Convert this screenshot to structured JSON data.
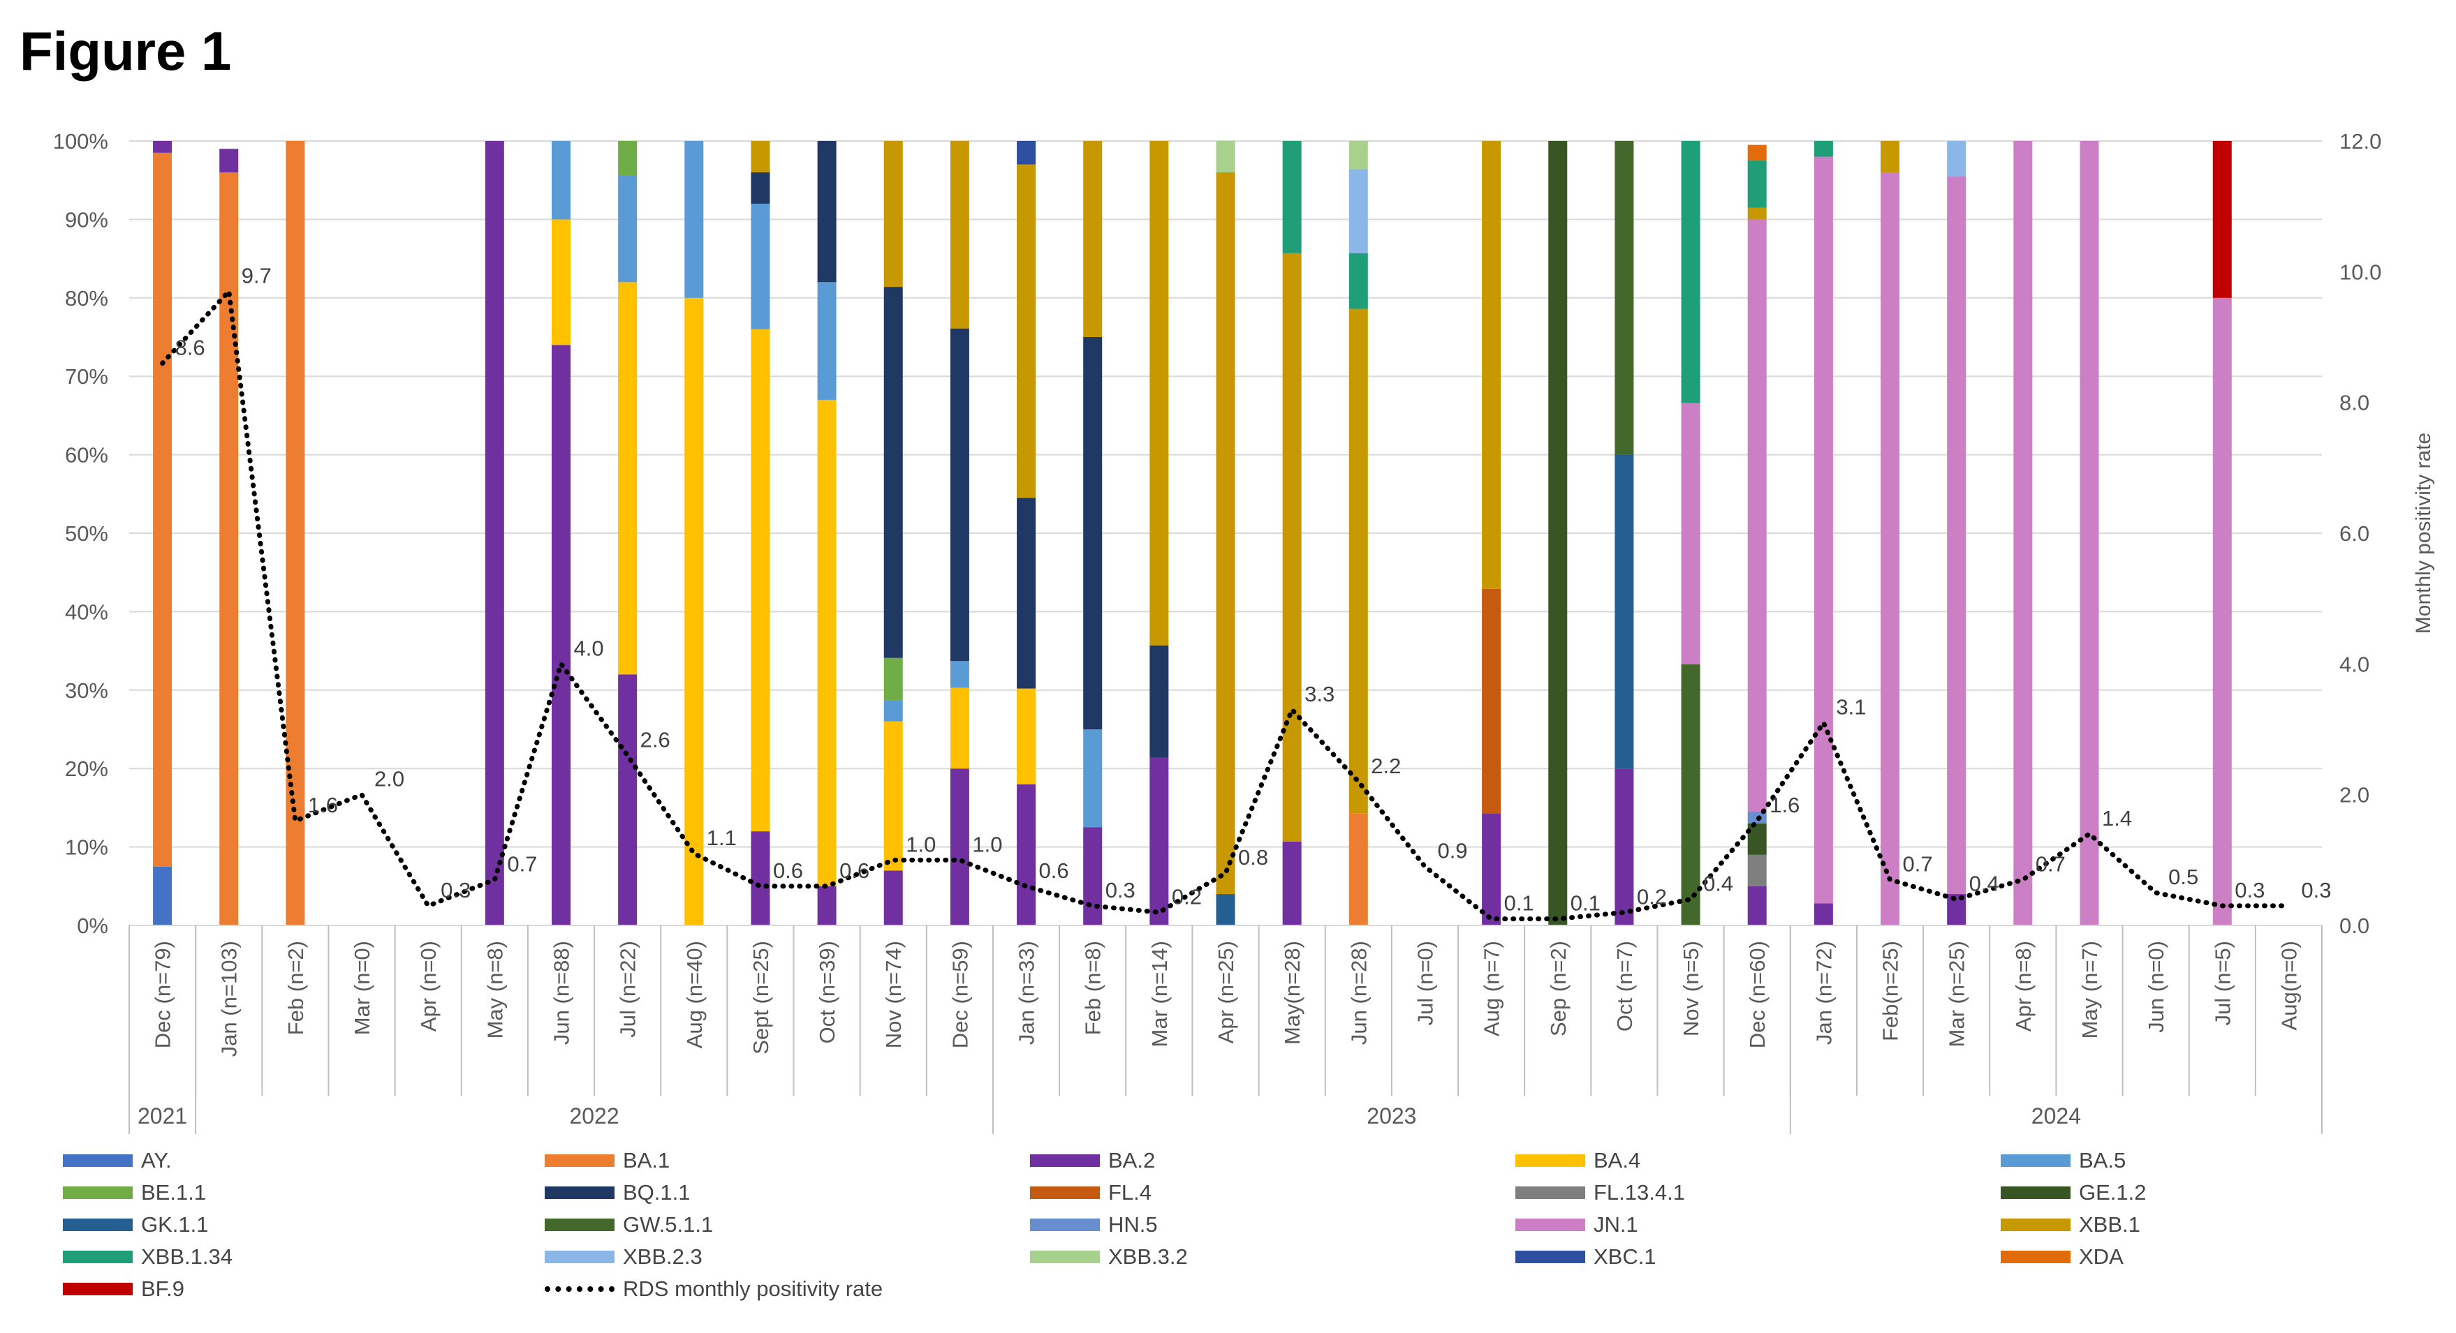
{
  "figure_title": "Figure 1",
  "chart_data": {
    "type": "bar",
    "stacked": true,
    "stacked_percent": true,
    "categories": [
      "Dec (n=79)",
      "Jan (n=103)",
      "Feb (n=2)",
      "Mar (n=0)",
      "Apr (n=0)",
      "May (n=8)",
      "Jun (n=88)",
      "Jul (n=22)",
      "Aug (n=40)",
      "Sept (n=25)",
      "Oct (n=39)",
      "Nov (n=74)",
      "Dec (n=59)",
      "Jan (n=33)",
      "Feb (n=8)",
      "Mar (n=14)",
      "Apr (n=25)",
      "May(n=28)",
      "Jun (n=28)",
      "Jul (n=0)",
      "Aug (n=7)",
      "Sep (n=2)",
      "Oct (n=7)",
      "Nov (n=5)",
      "Dec (n=60)",
      "Jan (n=72)",
      "Feb(n=25)",
      "Mar (n=25)",
      "Apr (n=8)",
      "May (n=7)",
      "Jun (n=0)",
      "Jul (n=5)",
      "Aug(n=0)"
    ],
    "years": [
      {
        "label": "2021",
        "start": 0,
        "end": 0
      },
      {
        "label": "2022",
        "start": 1,
        "end": 12
      },
      {
        "label": "2023",
        "start": 13,
        "end": 24
      },
      {
        "label": "2024",
        "start": 25,
        "end": 32
      }
    ],
    "y_left_ticks": [
      "0%",
      "10%",
      "20%",
      "30%",
      "40%",
      "50%",
      "60%",
      "70%",
      "80%",
      "90%",
      "100%"
    ],
    "y_right_ticks": [
      "0.0",
      "2.0",
      "4.0",
      "6.0",
      "8.0",
      "10.0",
      "12.0"
    ],
    "ylim_left": [
      0,
      100
    ],
    "ylim_right": [
      0,
      12
    ],
    "ylabel_right": "Monthly positivity rate",
    "series": [
      {
        "name": "AY.",
        "color": "#4472c4",
        "values": [
          7.5,
          0,
          0,
          0,
          0,
          0,
          0,
          0,
          0,
          0,
          0,
          0,
          0,
          0,
          0,
          0,
          0,
          0,
          0,
          0,
          0,
          0,
          0,
          0,
          0,
          0,
          0,
          0,
          0,
          0,
          0,
          0,
          0
        ]
      },
      {
        "name": "BA.1",
        "color": "#ed7d31",
        "values": [
          91,
          96,
          100,
          0,
          0,
          0,
          0,
          0,
          0,
          0,
          0,
          0,
          0,
          0,
          0,
          0,
          0,
          0,
          14.3,
          0,
          0,
          0,
          0,
          0,
          0,
          0,
          0,
          0,
          0,
          0,
          0,
          0,
          0
        ]
      },
      {
        "name": "BA.2",
        "color": "#7030a0",
        "values": [
          1.5,
          3,
          0,
          0,
          0,
          100,
          74,
          32,
          0,
          12,
          5,
          7,
          20,
          18,
          12.5,
          21.4,
          0,
          10.7,
          0,
          0,
          14.3,
          0,
          20,
          0,
          5,
          2.8,
          0,
          4,
          0,
          0,
          0,
          0,
          0
        ]
      },
      {
        "name": "BA.4",
        "color": "#ffc000",
        "values": [
          0,
          0,
          0,
          0,
          0,
          0,
          16,
          50,
          80,
          64,
          62,
          19,
          10.3,
          12.2,
          0,
          0,
          0,
          0,
          0,
          0,
          0,
          0,
          0,
          0,
          0,
          0,
          0,
          0,
          0,
          0,
          0,
          0,
          0
        ]
      },
      {
        "name": "BA.5",
        "color": "#5b9bd5",
        "values": [
          0,
          0,
          0,
          0,
          0,
          0,
          10,
          13.6,
          20,
          16,
          15,
          2.7,
          3.4,
          0,
          12.5,
          0,
          0,
          0,
          0,
          0,
          0,
          0,
          0,
          0,
          0,
          0,
          0,
          0,
          0,
          0,
          0,
          0,
          0
        ]
      },
      {
        "name": "BE.1.1",
        "color": "#70ad47",
        "values": [
          0,
          0,
          0,
          0,
          0,
          0,
          0,
          4.4,
          0,
          0,
          0,
          5.4,
          0,
          0,
          0,
          0,
          0,
          0,
          0,
          0,
          0,
          0,
          0,
          0,
          0,
          0,
          0,
          0,
          0,
          0,
          0,
          0,
          0
        ]
      },
      {
        "name": "BQ.1.1",
        "color": "#203864",
        "values": [
          0,
          0,
          0,
          0,
          0,
          0,
          0,
          0,
          0,
          4,
          18,
          47.3,
          42.4,
          24.3,
          50,
          14.3,
          0,
          0,
          0,
          0,
          0,
          0,
          0,
          0,
          0,
          0,
          0,
          0,
          0,
          0,
          0,
          0,
          0
        ]
      },
      {
        "name": "FL.4",
        "color": "#c55a11",
        "values": [
          0,
          0,
          0,
          0,
          0,
          0,
          0,
          0,
          0,
          0,
          0,
          0,
          0,
          0,
          0,
          0,
          0,
          0,
          0,
          0,
          28.6,
          0,
          0,
          0,
          0,
          0,
          0,
          0,
          0,
          0,
          0,
          0,
          0
        ]
      },
      {
        "name": "FL.13.4.1",
        "color": "#7f7f7f",
        "values": [
          0,
          0,
          0,
          0,
          0,
          0,
          0,
          0,
          0,
          0,
          0,
          0,
          0,
          0,
          0,
          0,
          0,
          0,
          0,
          0,
          0,
          0,
          0,
          0,
          4,
          0,
          0,
          0,
          0,
          0,
          0,
          0,
          0
        ]
      },
      {
        "name": "GE.1.2",
        "color": "#375623",
        "values": [
          0,
          0,
          0,
          0,
          0,
          0,
          0,
          0,
          0,
          0,
          0,
          0,
          0,
          0,
          0,
          0,
          0,
          0,
          0,
          0,
          0,
          100,
          0,
          0,
          4,
          0,
          0,
          0,
          0,
          0,
          0,
          0,
          0
        ]
      },
      {
        "name": "GK.1.1",
        "color": "#255e91",
        "values": [
          0,
          0,
          0,
          0,
          0,
          0,
          0,
          0,
          0,
          0,
          0,
          0,
          0,
          0,
          0,
          0,
          4,
          0,
          0,
          0,
          0,
          0,
          40,
          0,
          0,
          0,
          0,
          0,
          0,
          0,
          0,
          0,
          0
        ]
      },
      {
        "name": "GW.5.1.1",
        "color": "#43682b",
        "values": [
          0,
          0,
          0,
          0,
          0,
          0,
          0,
          0,
          0,
          0,
          0,
          0,
          0,
          0,
          0,
          0,
          0,
          0,
          0,
          0,
          0,
          0,
          40,
          33.3,
          0,
          0,
          0,
          0,
          0,
          0,
          0,
          0,
          0
        ]
      },
      {
        "name": "HN.5",
        "color": "#698ed0",
        "values": [
          0,
          0,
          0,
          0,
          0,
          0,
          0,
          0,
          0,
          0,
          0,
          0,
          0,
          0,
          0,
          0,
          0,
          0,
          0,
          0,
          0,
          0,
          0,
          0,
          1.5,
          0,
          0,
          0,
          0,
          0,
          0,
          0,
          0
        ]
      },
      {
        "name": "JN.1",
        "color": "#cc7fc4",
        "values": [
          0,
          0,
          0,
          0,
          0,
          0,
          0,
          0,
          0,
          0,
          0,
          0,
          0,
          0,
          0,
          0,
          0,
          0,
          0,
          0,
          0,
          0,
          0,
          33.3,
          75.5,
          95.2,
          96,
          91.5,
          100,
          100,
          0,
          80,
          0
        ]
      },
      {
        "name": "XBB.1",
        "color": "#c89800",
        "values": [
          0,
          0,
          0,
          0,
          0,
          0,
          0,
          0,
          0,
          4,
          0,
          18.6,
          23.9,
          42.5,
          25,
          64.3,
          92,
          75,
          64.3,
          0,
          57.1,
          0,
          0,
          0,
          1.5,
          0,
          4,
          0,
          0,
          0,
          0,
          0,
          0
        ]
      },
      {
        "name": "XBB.1.34",
        "color": "#1f9e77",
        "values": [
          0,
          0,
          0,
          0,
          0,
          0,
          0,
          0,
          0,
          0,
          0,
          0,
          0,
          0,
          0,
          0,
          0,
          14.3,
          7.1,
          0,
          0,
          0,
          0,
          33.4,
          6,
          2,
          0,
          0,
          0,
          0,
          0,
          0,
          0
        ]
      },
      {
        "name": "XBB.2.3",
        "color": "#8ab6e8",
        "values": [
          0,
          0,
          0,
          0,
          0,
          0,
          0,
          0,
          0,
          0,
          0,
          0,
          0,
          0,
          0,
          0,
          0,
          0,
          10.7,
          0,
          0,
          0,
          0,
          0,
          0,
          0,
          0,
          4.5,
          0,
          0,
          0,
          0,
          0
        ]
      },
      {
        "name": "XBB.3.2",
        "color": "#a9d18e",
        "values": [
          0,
          0,
          0,
          0,
          0,
          0,
          0,
          0,
          0,
          0,
          0,
          0,
          0,
          0,
          0,
          0,
          4,
          0,
          3.6,
          0,
          0,
          0,
          0,
          0,
          0,
          0,
          0,
          0,
          0,
          0,
          0,
          0,
          0
        ]
      },
      {
        "name": "XBC.1",
        "color": "#2e4fa0",
        "values": [
          0,
          0,
          0,
          0,
          0,
          0,
          0,
          0,
          0,
          0,
          0,
          0,
          0,
          3,
          0,
          0,
          0,
          0,
          0,
          0,
          0,
          0,
          0,
          0,
          0,
          0,
          0,
          0,
          0,
          0,
          0,
          0,
          0
        ]
      },
      {
        "name": "XDA",
        "color": "#e36c0a",
        "values": [
          0,
          0,
          0,
          0,
          0,
          0,
          0,
          0,
          0,
          0,
          0,
          0,
          0,
          0,
          0,
          0,
          0,
          0,
          0,
          0,
          0,
          0,
          0,
          0,
          2,
          0,
          0,
          0,
          0,
          0,
          0,
          0,
          0
        ]
      },
      {
        "name": "BF.9",
        "color": "#c00000",
        "values": [
          0,
          0,
          0,
          0,
          0,
          0,
          0,
          0,
          0,
          0,
          0,
          0,
          0,
          0,
          0,
          0,
          0,
          0,
          0,
          0,
          0,
          0,
          0,
          0,
          0,
          0,
          0,
          0,
          0,
          0,
          0,
          20,
          0
        ]
      }
    ],
    "line": {
      "name": "RDS monthly positivity rate",
      "color": "#000000",
      "style": "dotted",
      "axis": "right",
      "values": [
        8.6,
        9.7,
        1.6,
        2.0,
        0.3,
        0.7,
        4.0,
        2.6,
        1.1,
        0.6,
        0.6,
        1.0,
        1.0,
        0.6,
        0.3,
        0.2,
        0.8,
        3.3,
        2.2,
        0.9,
        0.1,
        0.1,
        0.2,
        0.4,
        1.6,
        3.1,
        0.7,
        0.4,
        0.7,
        1.4,
        0.5,
        0.3,
        0.3
      ],
      "labels": [
        "8.6",
        "9.7",
        "1.6",
        "2.0",
        "0.3",
        "0.7",
        "4.0",
        "2.6",
        "1.1",
        "0.6",
        "0.6",
        "1.0",
        "1.0",
        "0.6",
        "0.3",
        "0.2",
        "0.8",
        "3.3",
        "2.2",
        "0.9",
        "0.1",
        "0.1",
        "0.2",
        "0.4",
        "1.6",
        "3.1",
        "0.7",
        "0.4",
        "0.7",
        "1.4",
        "0.5",
        "0.3",
        "0.3"
      ]
    },
    "legend_position": "bottom"
  }
}
